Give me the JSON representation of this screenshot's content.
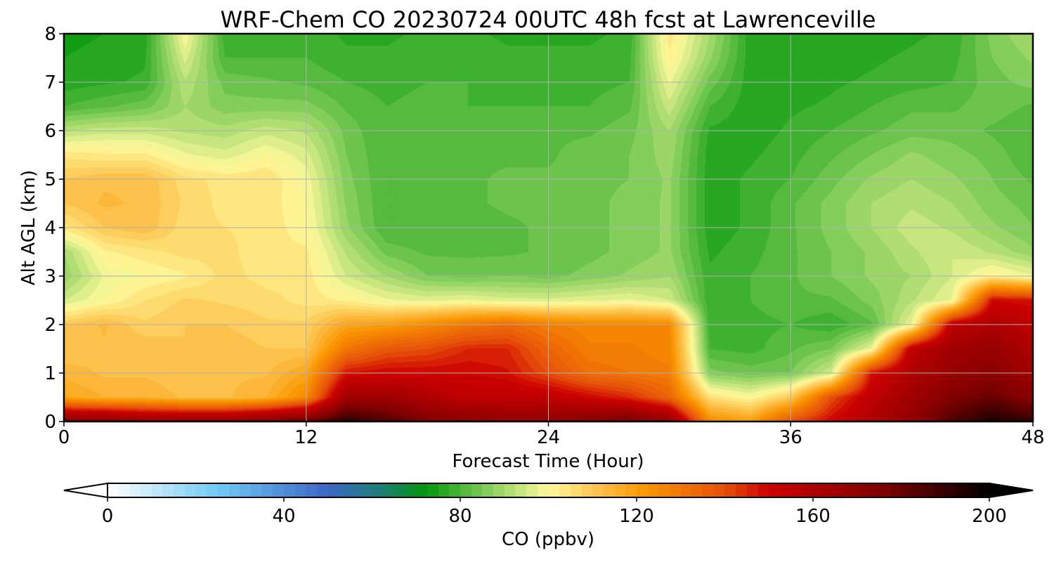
{
  "chart_data": {
    "type": "heatmap",
    "title": "WRF-Chem CO  20230724 00UTC 48h fcst at Lawrenceville",
    "xlabel": "Forecast Time (Hour)",
    "ylabel": "Alt AGL (km)",
    "xlim": [
      0,
      48
    ],
    "ylim": [
      0,
      8
    ],
    "x_ticks": [
      0,
      12,
      24,
      36,
      48
    ],
    "y_ticks": [
      0,
      1,
      2,
      3,
      4,
      5,
      6,
      7,
      8
    ],
    "grid": true,
    "x_hours": [
      0,
      2,
      4,
      6,
      8,
      10,
      12,
      14,
      16,
      18,
      20,
      22,
      24,
      26,
      28,
      30,
      32,
      34,
      36,
      38,
      40,
      42,
      44,
      46,
      48
    ],
    "alt_km": [
      0,
      0.5,
      1,
      1.5,
      2,
      2.5,
      3,
      3.5,
      4,
      4.5,
      5,
      5.5,
      6,
      6.5,
      7,
      7.5,
      8
    ],
    "co_ppbv": [
      [
        175,
        175,
        170,
        170,
        170,
        175,
        180,
        192,
        185,
        175,
        172,
        170,
        170,
        175,
        178,
        170,
        125,
        120,
        140,
        150,
        160,
        170,
        185,
        195,
        190
      ],
      [
        118,
        115,
        115,
        112,
        112,
        115,
        125,
        165,
        165,
        160,
        155,
        155,
        155,
        150,
        145,
        135,
        105,
        100,
        110,
        140,
        155,
        165,
        175,
        180,
        172
      ],
      [
        114,
        112,
        112,
        110,
        112,
        112,
        118,
        148,
        150,
        150,
        150,
        148,
        140,
        132,
        130,
        128,
        86,
        84,
        85,
        95,
        148,
        160,
        168,
        172,
        165
      ],
      [
        110,
        112,
        112,
        110,
        112,
        110,
        110,
        130,
        138,
        140,
        145,
        145,
        135,
        128,
        128,
        126,
        80,
        79,
        82,
        85,
        98,
        155,
        165,
        168,
        160
      ],
      [
        110,
        113,
        108,
        110,
        110,
        108,
        108,
        118,
        120,
        125,
        130,
        133,
        128,
        126,
        126,
        125,
        78,
        79,
        80,
        78,
        82,
        98,
        155,
        160,
        155
      ],
      [
        95,
        100,
        105,
        108,
        107,
        106,
        104,
        102,
        98,
        97,
        98,
        96,
        96,
        97,
        98,
        95,
        78,
        80,
        82,
        82,
        86,
        92,
        98,
        150,
        148
      ],
      [
        88,
        98,
        100,
        102,
        106,
        104,
        104,
        95,
        90,
        85,
        84,
        85,
        84,
        86,
        88,
        90,
        78,
        80,
        82,
        85,
        88,
        90,
        95,
        102,
        98
      ],
      [
        90,
        102,
        104,
        106,
        106,
        103,
        103,
        92,
        84,
        82,
        82,
        82,
        83,
        84,
        86,
        88,
        77,
        79,
        82,
        85,
        88,
        92,
        95,
        92,
        88
      ],
      [
        104,
        110,
        112,
        106,
        105,
        104,
        101,
        88,
        80,
        80,
        81,
        82,
        83,
        84,
        86,
        88,
        76,
        78,
        82,
        86,
        90,
        94,
        92,
        88,
        85
      ],
      [
        110,
        113,
        112,
        107,
        104,
        104,
        100,
        87,
        80,
        80,
        82,
        83,
        83,
        84,
        86,
        88,
        76,
        78,
        82,
        86,
        90,
        92,
        90,
        86,
        84
      ],
      [
        110,
        112,
        112,
        106,
        104,
        105,
        99,
        86,
        80,
        80,
        82,
        83,
        83,
        84,
        85,
        88,
        76,
        78,
        80,
        84,
        88,
        90,
        88,
        85,
        82
      ],
      [
        104,
        103,
        103,
        98,
        96,
        100,
        96,
        85,
        80,
        81,
        82,
        82,
        82,
        84,
        85,
        89,
        76,
        77,
        79,
        82,
        85,
        88,
        86,
        84,
        80
      ],
      [
        92,
        94,
        94,
        92,
        91,
        94,
        92,
        84,
        80,
        81,
        82,
        82,
        82,
        82,
        84,
        90,
        77,
        76,
        78,
        80,
        82,
        84,
        84,
        82,
        80
      ],
      [
        80,
        82,
        84,
        90,
        86,
        86,
        86,
        82,
        80,
        81,
        80,
        80,
        80,
        80,
        82,
        94,
        80,
        76,
        77,
        78,
        80,
        82,
        82,
        84,
        82
      ],
      [
        76,
        77,
        78,
        92,
        84,
        83,
        82,
        80,
        79,
        80,
        80,
        79,
        79,
        79,
        80,
        98,
        84,
        76,
        76,
        77,
        78,
        79,
        80,
        84,
        86
      ],
      [
        75,
        76,
        77,
        96,
        80,
        80,
        80,
        78,
        78,
        79,
        79,
        78,
        78,
        78,
        79,
        102,
        88,
        76,
        76,
        76,
        77,
        78,
        79,
        85,
        88
      ],
      [
        74,
        75,
        76,
        100,
        78,
        78,
        79,
        77,
        77,
        78,
        78,
        77,
        77,
        77,
        78,
        104,
        90,
        76,
        75,
        75,
        76,
        77,
        78,
        86,
        90
      ]
    ],
    "colorbar": {
      "label": "CO  (ppbv)",
      "ticks": [
        0,
        40,
        80,
        120,
        160,
        200
      ],
      "min": 0,
      "max": 200,
      "extend": "both",
      "color_stops": [
        {
          "v": 0,
          "c": "#ffffff"
        },
        {
          "v": 25,
          "c": "#6fcaf6"
        },
        {
          "v": 50,
          "c": "#3b66c4"
        },
        {
          "v": 62,
          "c": "#1e7e78"
        },
        {
          "v": 72,
          "c": "#00960a"
        },
        {
          "v": 86,
          "c": "#82cd5a"
        },
        {
          "v": 100,
          "c": "#fffa9c"
        },
        {
          "v": 112,
          "c": "#fcbe46"
        },
        {
          "v": 122,
          "c": "#fa9600"
        },
        {
          "v": 140,
          "c": "#e6500a"
        },
        {
          "v": 150,
          "c": "#cc0000"
        },
        {
          "v": 175,
          "c": "#820000"
        },
        {
          "v": 200,
          "c": "#000000"
        }
      ]
    }
  }
}
